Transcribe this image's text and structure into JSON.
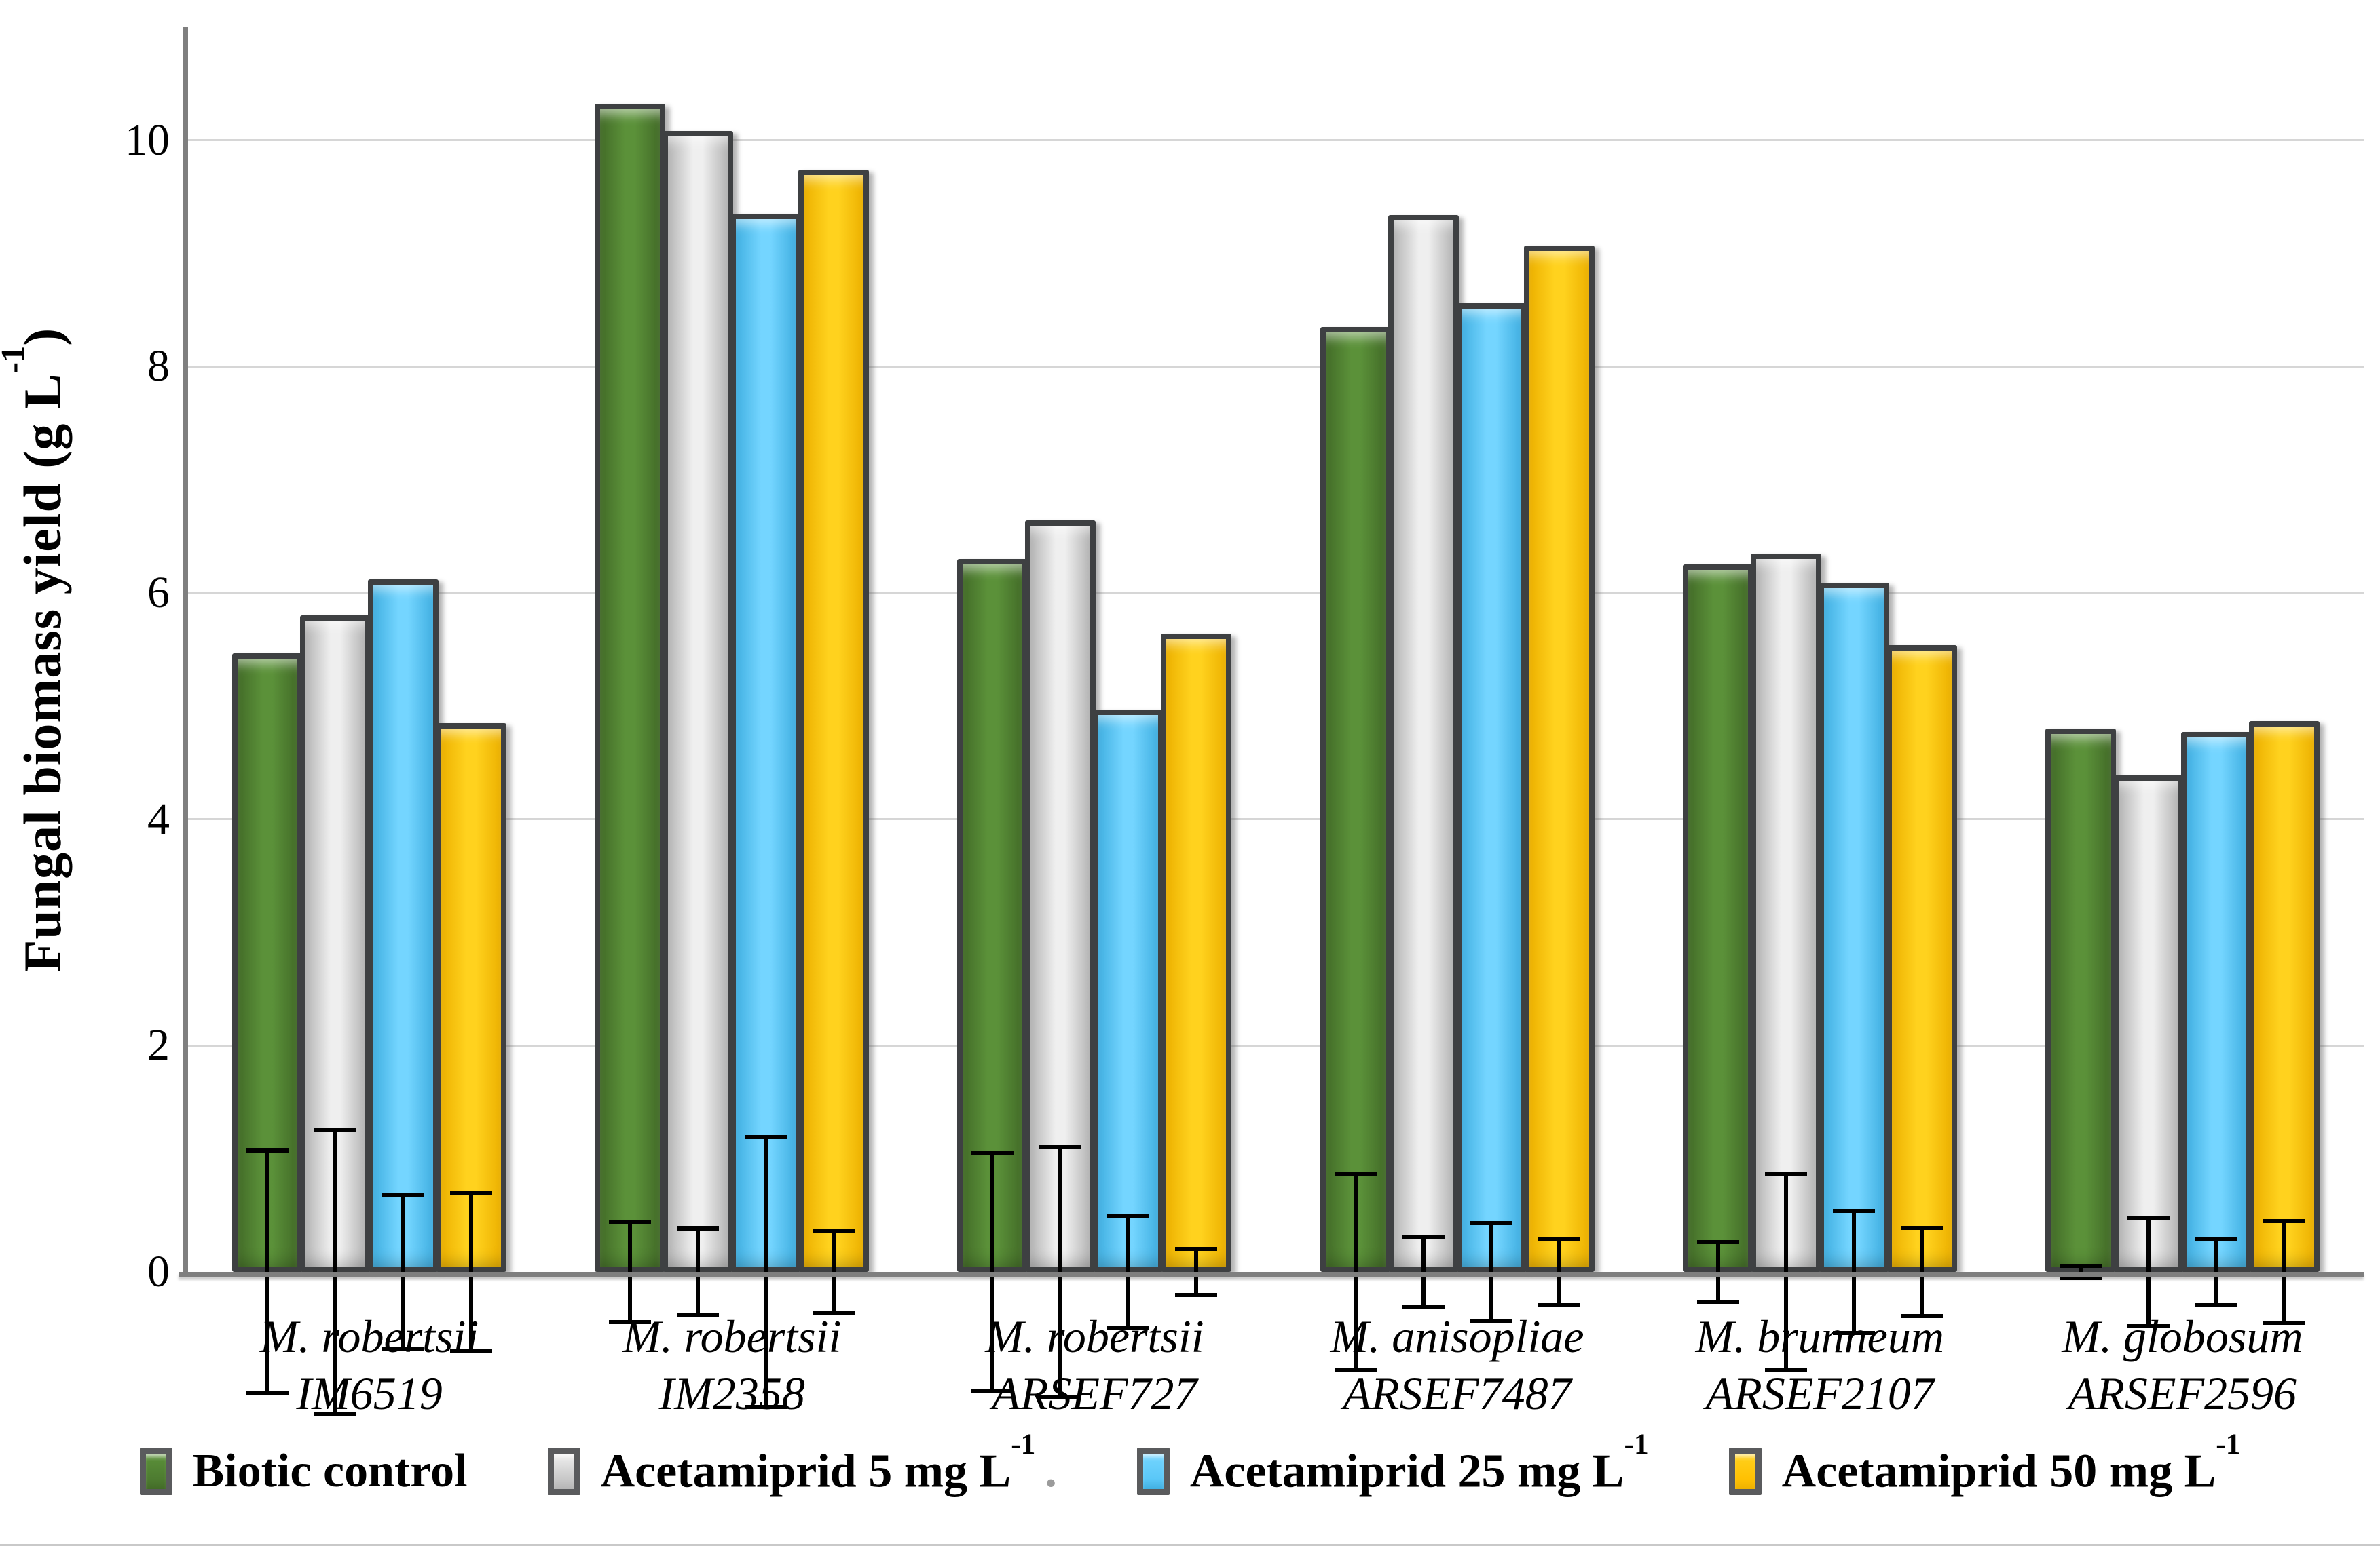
{
  "figure": {
    "ylabel_base": "Fungal biomass yield (g L",
    "ylabel_sup": "-1",
    "ylabel_close": ")"
  },
  "chart_data": {
    "type": "bar",
    "title": "",
    "ylabel": "Fungal biomass yield (g L-1)",
    "ylim": [
      0,
      11
    ],
    "yticks": [
      0,
      2,
      4,
      6,
      8,
      10
    ],
    "grid": "horizontal-light-gray",
    "legend_position": "bottom",
    "error_bars": true,
    "axis_color": "#7f7f7f",
    "gridline_color": "#d6d6d6",
    "bar_border_color": "#3e4042",
    "categories": [
      {
        "line1": "M. robertsii",
        "line2": "IM6519"
      },
      {
        "line1": "M. robertsii",
        "line2": "IM2358"
      },
      {
        "line1": "M. robertsii",
        "line2": "ARSEF727"
      },
      {
        "line1": "M. anisopliae",
        "line2": "ARSEF7487"
      },
      {
        "line1": "M. brunneum",
        "line2": "ARSEF2107"
      },
      {
        "line1": "M. globosum",
        "line2": "ARSEF2596"
      }
    ],
    "series": [
      {
        "name_base": "Biotic control",
        "name_sup": "",
        "trailing_dot": "",
        "color": "#4e7c31",
        "color_edge": "#436c28",
        "color_mid": "#5b9139",
        "values": [
          5.47,
          10.32,
          6.3,
          8.35,
          6.25,
          4.8
        ],
        "errors": [
          1.09,
          0.46,
          1.07,
          0.89,
          0.28,
          0.07
        ]
      },
      {
        "name_base": "Acetamiprid 5 mg L",
        "name_sup": "-1",
        "trailing_dot": ".",
        "color": "#c9c9c9",
        "color_edge": "#b5b5b5",
        "color_mid": "#efefef",
        "values": [
          5.8,
          10.08,
          6.64,
          9.34,
          6.35,
          4.39
        ],
        "errors": [
          1.27,
          0.4,
          1.12,
          0.33,
          0.88,
          0.5
        ]
      },
      {
        "name_base": "Acetamiprid 25 mg L",
        "name_sup": "-1",
        "trailing_dot": "",
        "color": "#5bc8f8",
        "color_edge": "#41b0e2",
        "color_mid": "#74d5ff",
        "values": [
          6.12,
          9.35,
          4.97,
          8.56,
          6.09,
          4.77
        ],
        "errors": [
          0.7,
          1.21,
          0.51,
          0.45,
          0.56,
          0.31
        ]
      },
      {
        "name_base": "Acetamiprid 50 mg L",
        "name_sup": "-1",
        "trailing_dot": "",
        "color": "#ffc103",
        "color_edge": "#edb100",
        "color_mid": "#ffd21e",
        "values": [
          4.85,
          9.74,
          5.64,
          9.07,
          5.54,
          4.87
        ],
        "errors": [
          0.72,
          0.38,
          0.22,
          0.31,
          0.41,
          0.47
        ]
      }
    ]
  }
}
